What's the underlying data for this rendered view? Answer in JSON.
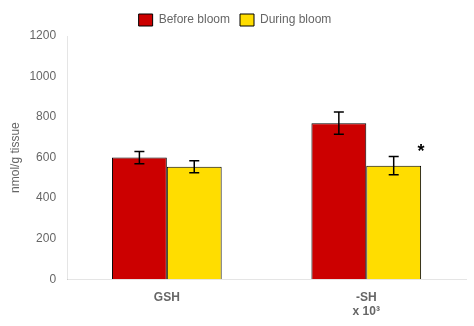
{
  "chart_data": {
    "type": "bar",
    "categories": [
      "GSH",
      "-SH"
    ],
    "series": [
      {
        "name": "Before bloom",
        "color": "#cc0000",
        "values": [
          600,
          770
        ],
        "errors": [
          30,
          55
        ]
      },
      {
        "name": "During bloom",
        "color": "#ffdd00",
        "values": [
          555,
          560
        ],
        "errors": [
          30,
          45
        ]
      }
    ],
    "ylabel": "nmol/g tissue",
    "ylim": [
      0,
      1200
    ],
    "yticks": [
      0,
      200,
      400,
      600,
      800,
      1000,
      1200
    ],
    "grid": false,
    "legend": "top",
    "annotations": [
      {
        "text": "*",
        "category": "-SH",
        "series": "During bloom"
      },
      {
        "text": "x 10³",
        "category": "-SH"
      }
    ]
  }
}
